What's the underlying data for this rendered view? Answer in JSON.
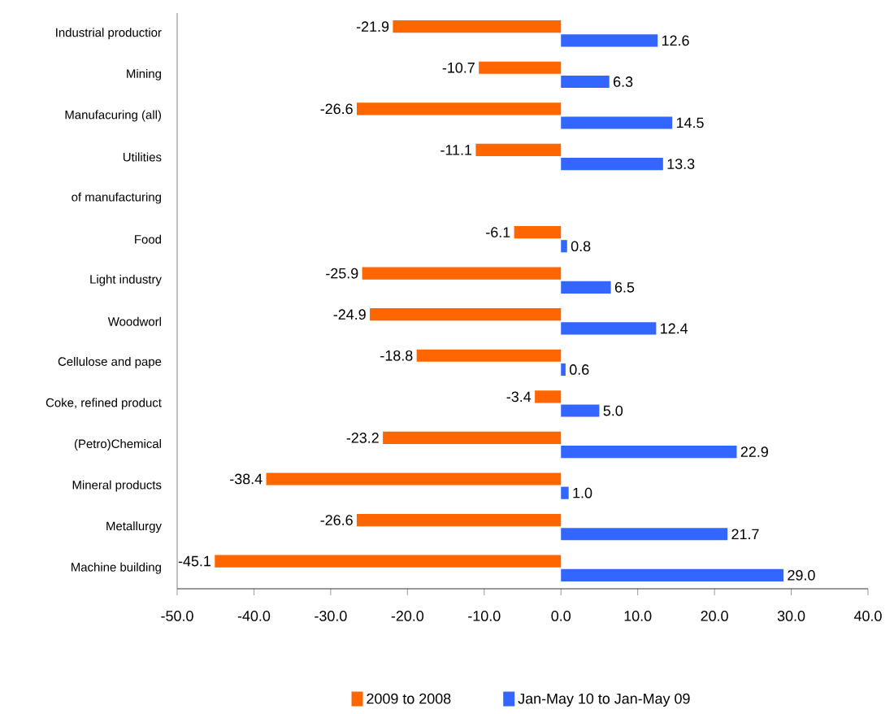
{
  "chart_data": {
    "type": "bar",
    "orientation": "horizontal",
    "categories": [
      "Industrial productior",
      "Mining",
      "Manufacuring (all)",
      "Utilities",
      "of manufacturing",
      "Food",
      "Light industry",
      "Woodworl",
      "Cellulose and pape",
      "Coke, refined product",
      "(Petro)Chemical",
      "Mineral products",
      "Metallurgy",
      "Machine building"
    ],
    "series": [
      {
        "name": "2009 to 2008",
        "color": "#ff6600",
        "values": [
          -21.9,
          -10.7,
          -26.6,
          -11.1,
          null,
          -6.1,
          -25.9,
          -24.9,
          -18.8,
          -3.4,
          -23.2,
          -38.4,
          -26.6,
          -45.1
        ],
        "value_labels": [
          "-21.9",
          "-10.7",
          "-26.6",
          "-11.1",
          null,
          "-6.1",
          "-25.9",
          "-24.9",
          "-18.8",
          "-3.4",
          "-23.2",
          "-38.4",
          "-26.6",
          "-45.1"
        ]
      },
      {
        "name": "Jan-May 10 to Jan-May 09",
        "color": "#3366ff",
        "values": [
          12.6,
          6.3,
          14.5,
          13.3,
          null,
          0.8,
          6.5,
          12.4,
          0.6,
          5.0,
          22.9,
          1.0,
          21.7,
          29.0
        ],
        "value_labels": [
          "12.6",
          "6.3",
          "14.5",
          "13.3",
          null,
          "0.8",
          "6.5",
          "12.4",
          "0.6",
          "5.0",
          "22.9",
          "1.0",
          "21.7",
          "29.0"
        ]
      }
    ],
    "xlim": [
      -50,
      40
    ],
    "xticks": [
      {
        "value": -50,
        "label": "-50.0"
      },
      {
        "value": -40,
        "label": "-40.0"
      },
      {
        "value": -30,
        "label": "-30.0"
      },
      {
        "value": -20,
        "label": "-20.0"
      },
      {
        "value": -10,
        "label": "-10.0"
      },
      {
        "value": 0,
        "label": "0.0"
      },
      {
        "value": 10,
        "label": "10.0"
      },
      {
        "value": 20,
        "label": "20.0"
      },
      {
        "value": 30,
        "label": "30.0"
      },
      {
        "value": 40,
        "label": "40.0"
      }
    ],
    "legend": "bottom"
  }
}
